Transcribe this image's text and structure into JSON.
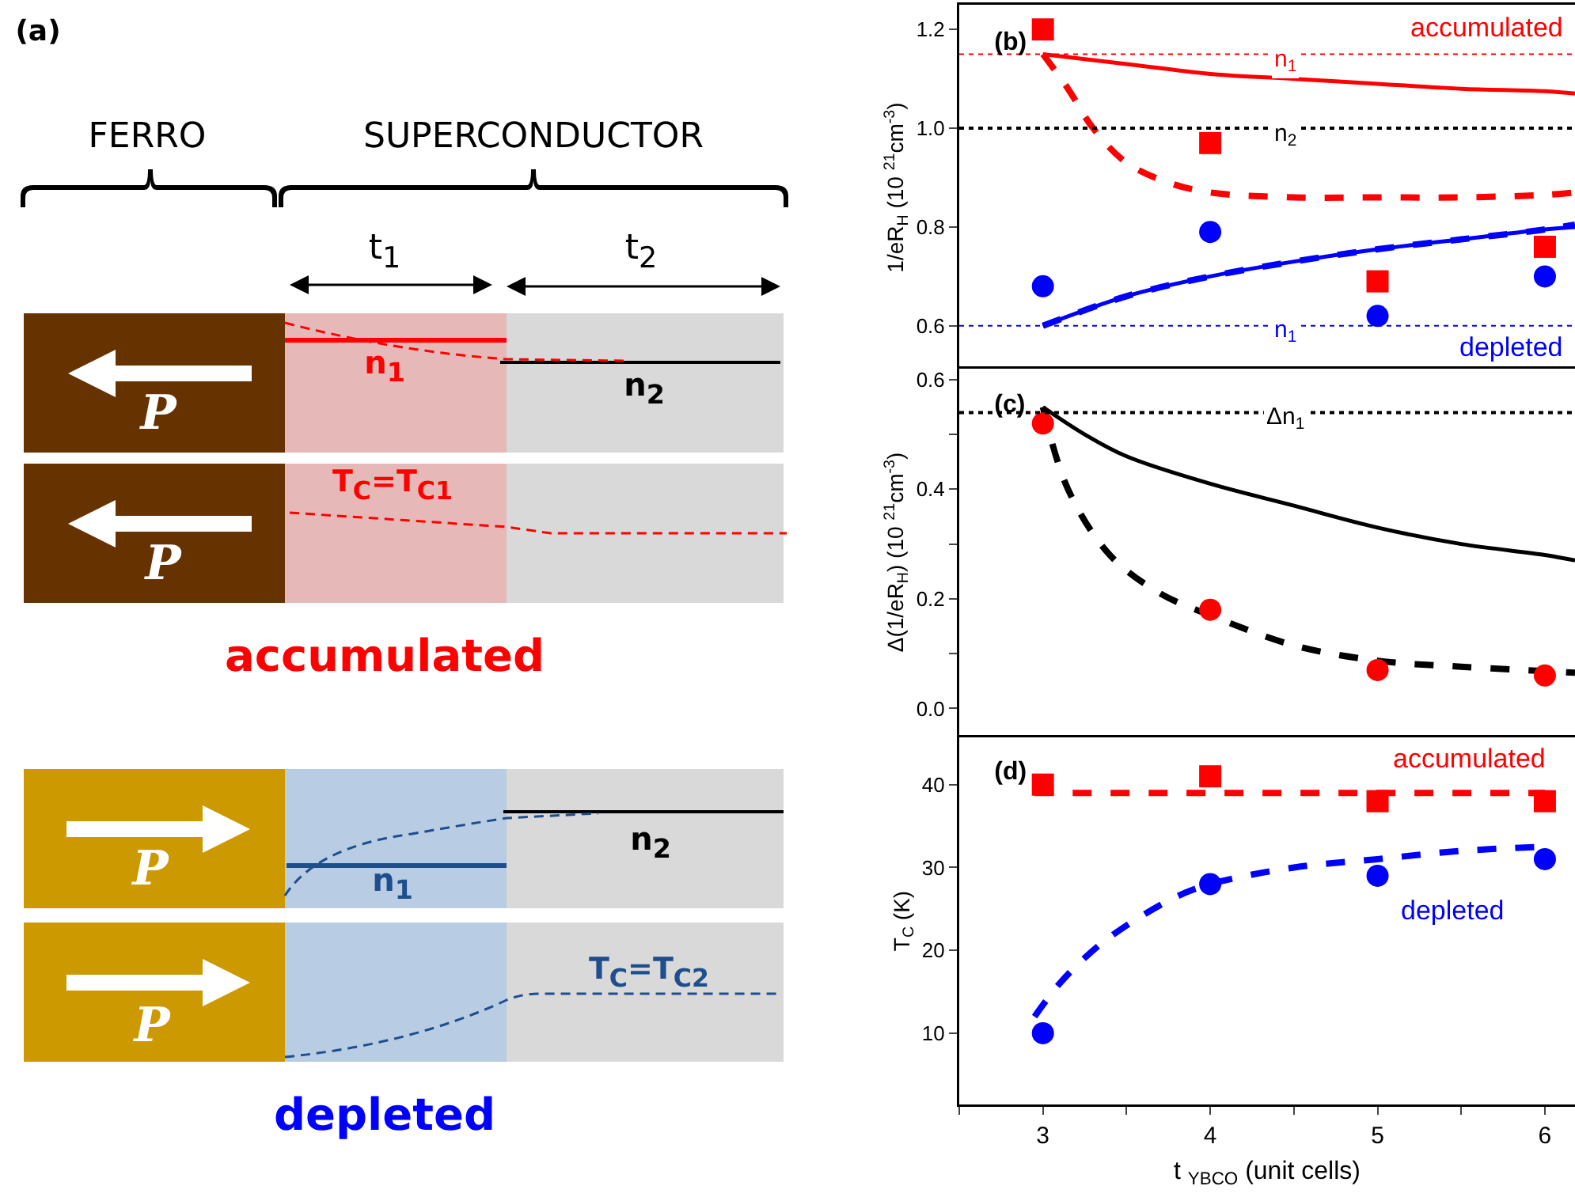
{
  "chart_data": [
    {
      "type": "other",
      "title": "(a)",
      "annotations": [
        "FERRO",
        "SUPERCONDUCTOR",
        "t$_{1}$",
        "t$_{2}$",
        "n$_{1}$",
        "n$_{2}$",
        "P",
        "T$_{C}$=T$_{C1}$",
        "P",
        "accumulated",
        "n$_{2}$",
        "n$_{1}$",
        "P",
        "T$_{C}$=T$_{C2}$",
        "P",
        "depleted"
      ]
    },
    {
      "type": "scatter",
      "title": "(b)",
      "ylabel": "1/eR$_{H}$ (10 $^{21}$cm$^{-3}$)",
      "xlim": [
        2.5,
        6.18
      ],
      "xticks": [
        {
          "value": 2.5,
          "label": null
        },
        3,
        {
          "value": 3.5,
          "label": null
        },
        4,
        {
          "value": 4.5,
          "label": null
        },
        5,
        {
          "value": 5.5,
          "label": null
        },
        6
      ],
      "ylim": [
        0.51,
        1.25
      ],
      "yticks": [
        0.6,
        0.8,
        {
          "value": 1,
          "label": "1.0"
        },
        1.2
      ],
      "tick_labels": "y",
      "grid": false,
      "series": [
        {
          "type": "line",
          "color": "#ff0000",
          "line_style": "solid",
          "marker": "none",
          "x": [
            3,
            3.5,
            4,
            4.5,
            5,
            5.5,
            6,
            6.18
          ],
          "values": [
            1.15,
            1.13,
            1.11,
            1.1,
            1.09,
            1.08,
            1.075,
            1.07
          ]
        },
        {
          "type": "line",
          "color": "#ff0000",
          "line_style": "dashed",
          "marker": "none",
          "x": [
            3,
            3.15,
            3.3,
            3.5,
            3.75,
            4,
            4.5,
            5,
            5.5,
            6,
            6.18
          ],
          "values": [
            1.15,
            1.08,
            1.0,
            0.93,
            0.89,
            0.87,
            0.86,
            0.86,
            0.86,
            0.865,
            0.87
          ]
        },
        {
          "type": "line",
          "color": "#0000ff",
          "line_style": "solid",
          "marker": "none",
          "x": [
            3,
            3.5,
            4,
            4.5,
            5,
            5.5,
            6,
            6.18
          ],
          "values": [
            0.6,
            0.66,
            0.7,
            0.73,
            0.755,
            0.775,
            0.795,
            0.8
          ]
        },
        {
          "type": "line",
          "color": "#0000ff",
          "line_style": "dashed",
          "marker": "none",
          "x": [
            3,
            3.5,
            4,
            4.5,
            5,
            5.5,
            6,
            6.18
          ],
          "values": [
            0.6,
            0.66,
            0.7,
            0.73,
            0.755,
            0.775,
            0.795,
            0.805
          ]
        },
        {
          "type": "scatter",
          "color": "#ff0000",
          "marker": "square",
          "x": [
            3,
            4,
            5,
            6
          ],
          "values": [
            1.2,
            0.97,
            0.69,
            0.76
          ]
        },
        {
          "type": "scatter",
          "color": "#0000ff",
          "marker": "circle",
          "x": [
            3,
            4,
            5,
            6
          ],
          "values": [
            0.68,
            0.79,
            0.62,
            0.7
          ]
        }
      ],
      "ref_lines": [
        {
          "axis": "y",
          "value": 1.15,
          "label": "n$_{1}$",
          "color": "#ff0000",
          "line_style": "dotted"
        },
        {
          "axis": "y",
          "value": 1.0,
          "label": "n$_{2}$",
          "color": "#000000",
          "line_style": "dotted"
        },
        {
          "axis": "y",
          "value": 0.6,
          "label": "n$_{1}$",
          "color": "#0000ff",
          "line_style": "dotted"
        }
      ],
      "annotations": [
        "accumulated",
        "depleted"
      ]
    },
    {
      "type": "scatter",
      "title": "(c)",
      "ylabel": "Δ(1/eR$_{H}$) (10 $^{21}$cm$^{-3}$)",
      "xlim": [
        2.5,
        6.18
      ],
      "xticks": [
        {
          "value": 2.5,
          "label": null
        },
        3,
        {
          "value": 3.5,
          "label": null
        },
        4,
        {
          "value": 4.5,
          "label": null
        },
        5,
        {
          "value": 5.5,
          "label": null
        },
        6
      ],
      "ylim": [
        -0.05,
        0.62
      ],
      "yticks": [
        {
          "value": 0,
          "label": "0.0"
        },
        {
          "value": 0.1,
          "label": null
        },
        0.2,
        {
          "value": 0.3,
          "label": null
        },
        0.4,
        {
          "value": 0.5,
          "label": null
        },
        0.6
      ],
      "tick_labels": "y",
      "grid": false,
      "series": [
        {
          "type": "line",
          "color": "#000000",
          "line_style": "solid",
          "marker": "none",
          "x": [
            3,
            3.25,
            3.5,
            4,
            4.5,
            5,
            5.5,
            6,
            6.18
          ],
          "values": [
            0.55,
            0.5,
            0.46,
            0.41,
            0.37,
            0.33,
            0.3,
            0.28,
            0.27
          ]
        },
        {
          "type": "line",
          "color": "#000000",
          "line_style": "dashed",
          "marker": "none",
          "x": [
            3,
            3.15,
            3.4,
            3.7,
            4,
            4.5,
            5,
            5.5,
            6,
            6.18
          ],
          "values": [
            0.55,
            0.4,
            0.28,
            0.21,
            0.17,
            0.115,
            0.087,
            0.076,
            0.068,
            0.065
          ]
        },
        {
          "type": "scatter",
          "color": "#ff0000",
          "marker": "circle",
          "x": [
            3,
            4,
            5,
            6
          ],
          "values": [
            0.52,
            0.18,
            0.07,
            0.06
          ]
        }
      ],
      "ref_lines": [
        {
          "axis": "y",
          "value": 0.54,
          "label": "Δn$_{1}$",
          "color": "#000000",
          "line_style": "dotted"
        }
      ]
    },
    {
      "type": "scatter",
      "title": "(d)",
      "xlabel": "t $_{YBCO}$ (unit cells)",
      "ylabel": "T$_{C}$ (K)",
      "xlim": [
        2.5,
        6.18
      ],
      "xticks": [
        {
          "value": 2.5,
          "label": null
        },
        3,
        {
          "value": 3.5,
          "label": null
        },
        4,
        {
          "value": 4.5,
          "label": null
        },
        5,
        {
          "value": 5.5,
          "label": null
        },
        6
      ],
      "ylim": [
        1.4,
        45.7
      ],
      "yticks": [
        10,
        20,
        30,
        40
      ],
      "grid": false,
      "series": [
        {
          "type": "line",
          "color": "#ff0000",
          "line_style": "dashed",
          "marker": "none",
          "x": [
            2.95,
            3.5,
            4,
            4.5,
            5,
            5.5,
            6
          ],
          "values": [
            39,
            39,
            39,
            39,
            39,
            39,
            39
          ]
        },
        {
          "type": "line",
          "color": "#0000ff",
          "line_style": "dashed",
          "marker": "none",
          "x": [
            2.95,
            3.1,
            3.3,
            3.5,
            3.8,
            4,
            4.5,
            5,
            5.5,
            6
          ],
          "values": [
            12,
            16,
            20,
            23,
            26.5,
            28,
            30,
            31,
            32,
            32.5
          ]
        },
        {
          "type": "scatter",
          "color": "#ff0000",
          "marker": "square",
          "x": [
            3,
            4,
            5,
            6
          ],
          "values": [
            40,
            41,
            38,
            38
          ]
        },
        {
          "type": "scatter",
          "color": "#0000ff",
          "marker": "circle",
          "x": [
            3,
            4,
            5,
            6
          ],
          "values": [
            10,
            28,
            29,
            31
          ]
        }
      ],
      "annotations": [
        "accumulated",
        "depleted"
      ]
    }
  ]
}
